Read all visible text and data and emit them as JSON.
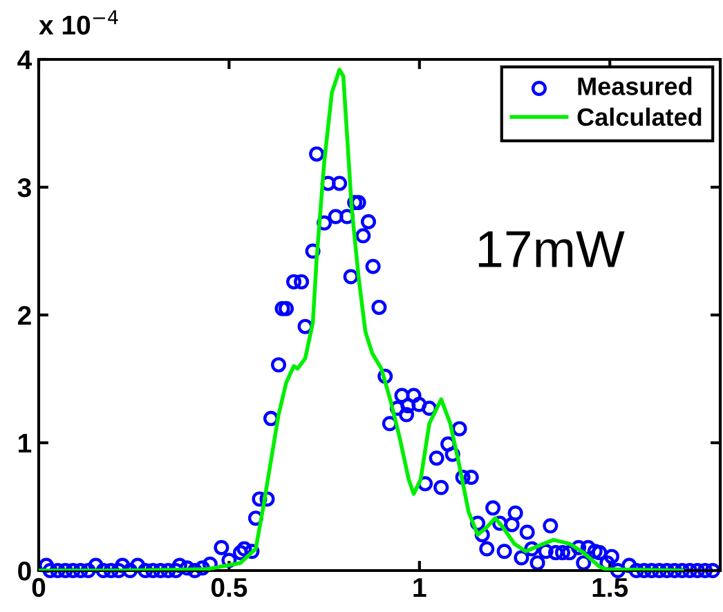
{
  "chart_data": {
    "type": "scatter",
    "xlim": [
      0,
      1.79
    ],
    "ylim": [
      0,
      4
    ],
    "xticks": [
      0,
      0.5,
      1,
      1.5
    ],
    "yticks": [
      0,
      1,
      2,
      3,
      4
    ],
    "grid": false,
    "legend": "top right",
    "annotations": [
      "x 10$^{−4}$",
      "17mW"
    ],
    "series": [
      {
        "name": "Measured",
        "color": "#0000ff",
        "marker": "circle",
        "x": [
          0.02,
          0.03,
          0.05,
          0.07,
          0.09,
          0.11,
          0.13,
          0.15,
          0.17,
          0.19,
          0.21,
          0.22,
          0.24,
          0.26,
          0.28,
          0.3,
          0.32,
          0.34,
          0.36,
          0.37,
          0.39,
          0.41,
          0.43,
          0.45,
          0.48,
          0.5,
          0.53,
          0.54,
          0.56,
          0.57,
          0.58,
          0.6,
          0.61,
          0.63,
          0.64,
          0.65,
          0.67,
          0.69,
          0.7,
          0.72,
          0.73,
          0.75,
          0.76,
          0.78,
          0.79,
          0.81,
          0.82,
          0.83,
          0.84,
          0.852,
          0.866,
          0.878,
          0.894,
          0.91,
          0.922,
          0.942,
          0.954,
          0.966,
          0.97,
          0.985,
          0.999,
          1.015,
          1.026,
          1.045,
          1.057,
          1.075,
          1.087,
          1.105,
          1.114,
          1.136,
          1.153,
          1.165,
          1.177,
          1.193,
          1.211,
          1.223,
          1.243,
          1.252,
          1.268,
          1.283,
          1.295,
          1.31,
          1.332,
          1.344,
          1.358,
          1.376,
          1.394,
          1.418,
          1.431,
          1.443,
          1.461,
          1.473,
          1.493,
          1.505,
          1.521,
          1.551,
          1.57,
          1.59,
          1.61,
          1.63,
          1.65,
          1.67,
          1.69,
          1.71,
          1.73,
          1.75,
          1.77
        ],
        "values": [
          0.04,
          0,
          0,
          0,
          0,
          0,
          0,
          0.04,
          0,
          0,
          0,
          0.04,
          0,
          0.04,
          0,
          0,
          0,
          0,
          0,
          0.04,
          0.02,
          0,
          0.02,
          0.05,
          0.18,
          0.08,
          0.14,
          0.17,
          0.15,
          0.41,
          0.56,
          0.56,
          1.19,
          1.61,
          2.05,
          2.05,
          2.26,
          2.26,
          1.91,
          2.5,
          3.26,
          2.72,
          3.03,
          2.77,
          3.03,
          2.77,
          2.3,
          2.88,
          2.88,
          2.62,
          2.73,
          2.38,
          2.06,
          1.52,
          1.15,
          1.27,
          1.37,
          1.22,
          1.29,
          1.37,
          1.3,
          0.68,
          1.27,
          0.88,
          0.65,
          0.99,
          0.91,
          1.11,
          0.73,
          0.73,
          0.37,
          0.28,
          0.17,
          0.49,
          0.37,
          0.15,
          0.36,
          0.45,
          0.1,
          0.3,
          0.17,
          0.06,
          0.15,
          0.35,
          0.14,
          0.14,
          0.14,
          0.18,
          0.06,
          0.18,
          0.15,
          0.14,
          0.06,
          0.11,
          0,
          0.04,
          0,
          0,
          0,
          0,
          0,
          0,
          0,
          0,
          0,
          0,
          0
        ]
      },
      {
        "name": "Calculated",
        "type": "line",
        "color": "#00ee00",
        "line_style": "solid",
        "x": [
          0,
          0.2,
          0.44,
          0.53,
          0.57,
          0.59,
          0.61,
          0.63,
          0.65,
          0.67,
          0.68,
          0.7,
          0.72,
          0.73,
          0.75,
          0.77,
          0.79,
          0.8,
          0.822,
          0.84,
          0.858,
          0.876,
          0.9,
          0.924,
          0.948,
          0.972,
          0.985,
          1.003,
          1.026,
          1.057,
          1.081,
          1.105,
          1.129,
          1.153,
          1.177,
          1.199,
          1.219,
          1.249,
          1.279,
          1.31,
          1.352,
          1.394,
          1.431,
          1.473,
          1.49,
          1.69
        ],
        "values": [
          0,
          0,
          0.01,
          0.06,
          0.17,
          0.5,
          0.86,
          1.22,
          1.47,
          1.6,
          1.58,
          1.66,
          1.94,
          2.44,
          3.2,
          3.74,
          3.92,
          3.87,
          2.84,
          2.3,
          1.87,
          1.7,
          1.58,
          1.33,
          1.04,
          0.71,
          0.6,
          0.71,
          1.15,
          1.34,
          1.15,
          0.82,
          0.46,
          0.28,
          0.34,
          0.41,
          0.34,
          0.21,
          0.15,
          0.19,
          0.24,
          0.21,
          0.14,
          0.03,
          0.01,
          0
        ]
      }
    ]
  }
}
